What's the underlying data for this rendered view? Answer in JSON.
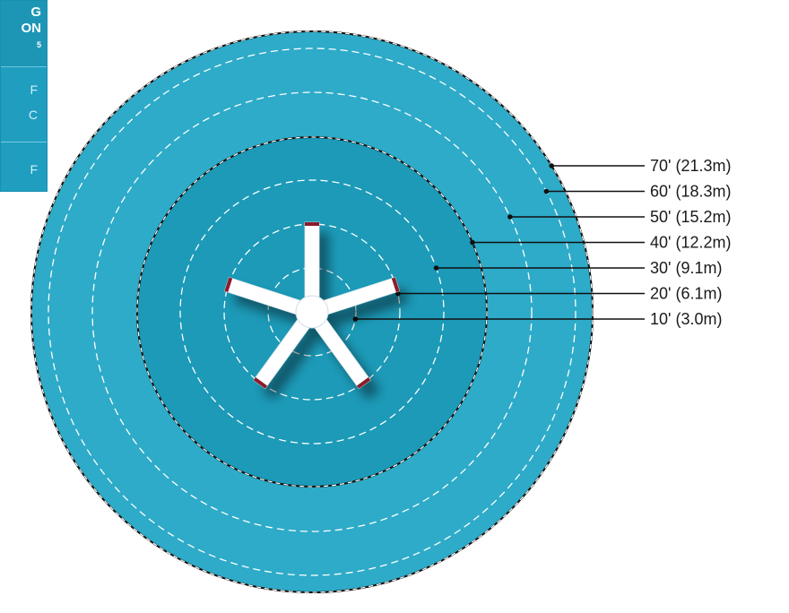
{
  "colors": {
    "outer_zone": "#2eabc8",
    "inner_zone": "#1c9ab8",
    "ring_dashed": "#ffffff",
    "boundary": "#111111",
    "fan_blade": "#ffffff",
    "blade_tip": "#8b1e2a",
    "leader_line": "#111111"
  },
  "legend": {
    "line1": "G",
    "line2": "ON",
    "line2_sup": "5",
    "row_a_1": "F",
    "row_a_2": "C",
    "row_b": "F"
  },
  "rings": [
    {
      "distance_ft": 10,
      "label": "10' (3.0m)"
    },
    {
      "distance_ft": 20,
      "label": "20' (6.1m)"
    },
    {
      "distance_ft": 30,
      "label": "30' (9.1m)"
    },
    {
      "distance_ft": 40,
      "label": "40' (12.2m)"
    },
    {
      "distance_ft": 50,
      "label": "50' (15.2m)"
    },
    {
      "distance_ft": 60,
      "label": "60' (18.3m)"
    },
    {
      "distance_ft": 70,
      "label": "70' (21.3m)"
    }
  ],
  "fan": {
    "icon": "ceiling-fan-icon",
    "blade_count": 5
  }
}
